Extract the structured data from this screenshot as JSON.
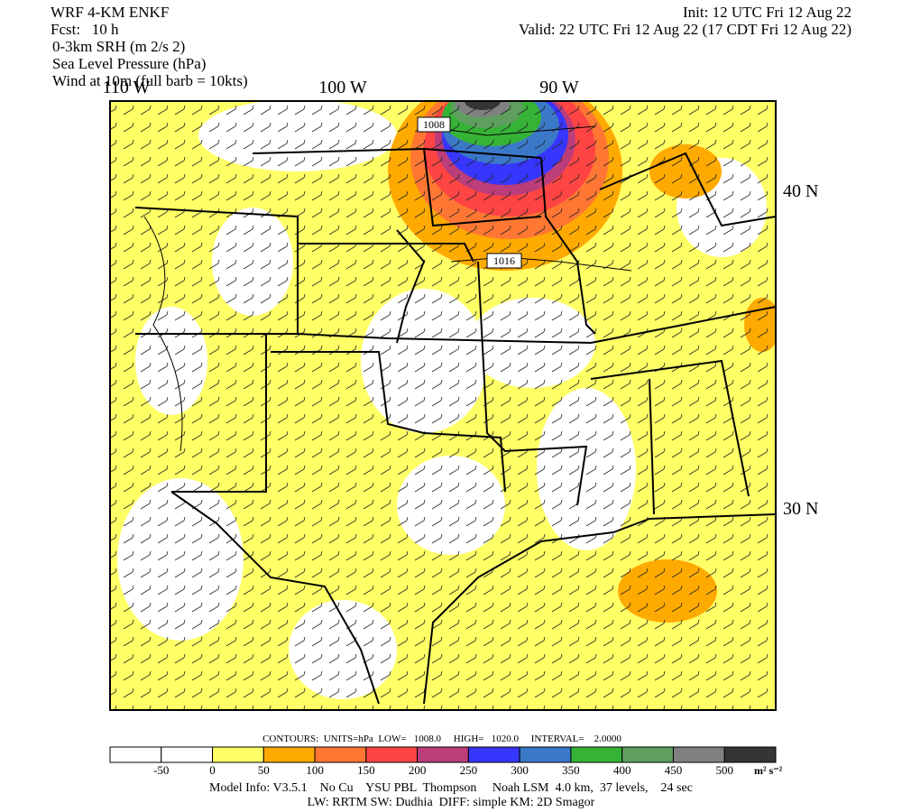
{
  "header": {
    "model": "WRF 4-KM ENKF",
    "forecast": "Fcst:   10 h",
    "init": "Init: 12 UTC Fri 12 Aug 22",
    "valid": "Valid: 22 UTC Fri 12 Aug 22 (17 CDT Fri 12 Aug 22)",
    "fields": [
      "0-3km SRH (m 2/s 2)",
      "Sea Level Pressure (hPa)",
      "Wind at 10m (full barb = 10kts)"
    ]
  },
  "map": {
    "longitude_labels": [
      "110 W",
      "100 W",
      "90 W"
    ],
    "latitude_labels": [
      "40 N",
      "30 N"
    ],
    "contour_labels": [
      "1008",
      "1016"
    ]
  },
  "contours_info": "CONTOURS:  UNITS=hPa  LOW=   1008.0     HIGH=   1020.0     INTERVAL=    2.0000",
  "colorbar": {
    "labels": [
      "-50",
      "0",
      "50",
      "100",
      "150",
      "200",
      "250",
      "300",
      "350",
      "400",
      "450",
      "500"
    ],
    "units": "m² s⁻²",
    "colors": [
      "#ffffff",
      "#ffffff",
      "#ffff66",
      "#ffaa00",
      "#ff7733",
      "#ff4444",
      "#bb3d7a",
      "#3636ff",
      "#3b78c8",
      "#36b336",
      "#5e9e5e",
      "#808080",
      "#353535"
    ]
  },
  "footer": [
    "Model Info: V3.5.1    No Cu    YSU PBL  Thompson     Noah LSM  4.0 km,  37 levels,    24 sec",
    "LW: RRTM SW: Dudhia  DIFF: simple KM: 2D Smagor"
  ]
}
